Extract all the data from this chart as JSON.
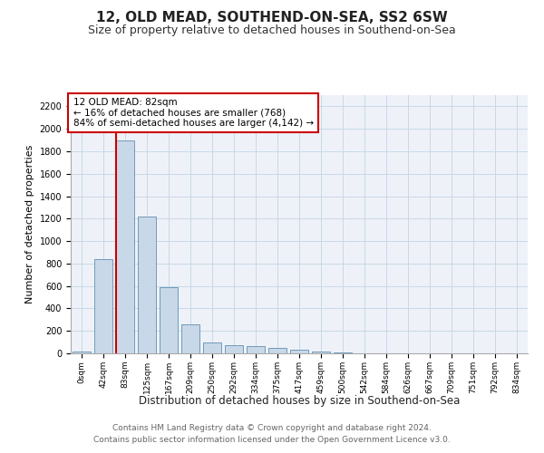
{
  "title": "12, OLD MEAD, SOUTHEND-ON-SEA, SS2 6SW",
  "subtitle": "Size of property relative to detached houses in Southend-on-Sea",
  "xlabel": "Distribution of detached houses by size in Southend-on-Sea",
  "ylabel": "Number of detached properties",
  "categories": [
    "0sqm",
    "42sqm",
    "83sqm",
    "125sqm",
    "167sqm",
    "209sqm",
    "250sqm",
    "292sqm",
    "334sqm",
    "375sqm",
    "417sqm",
    "459sqm",
    "500sqm",
    "542sqm",
    "584sqm",
    "626sqm",
    "667sqm",
    "709sqm",
    "751sqm",
    "792sqm",
    "834sqm"
  ],
  "values": [
    20,
    840,
    1900,
    1220,
    590,
    258,
    100,
    75,
    68,
    50,
    30,
    20,
    5,
    0,
    0,
    0,
    0,
    0,
    0,
    0,
    0
  ],
  "bar_color": "#c8d8e8",
  "bar_edge_color": "#6090b0",
  "annotation_text": "12 OLD MEAD: 82sqm\n← 16% of detached houses are smaller (768)\n84% of semi-detached houses are larger (4,142) →",
  "annotation_box_color": "#ffffff",
  "annotation_border_color": "#cc0000",
  "property_line_color": "#cc0000",
  "ylim": [
    0,
    2300
  ],
  "yticks": [
    0,
    200,
    400,
    600,
    800,
    1000,
    1200,
    1400,
    1600,
    1800,
    2000,
    2200
  ],
  "grid_color": "#c8d8e8",
  "background_color": "#eef2f8",
  "footer_line1": "Contains HM Land Registry data © Crown copyright and database right 2024.",
  "footer_line2": "Contains public sector information licensed under the Open Government Licence v3.0.",
  "title_fontsize": 11,
  "subtitle_fontsize": 9,
  "xlabel_fontsize": 8.5,
  "ylabel_fontsize": 8
}
